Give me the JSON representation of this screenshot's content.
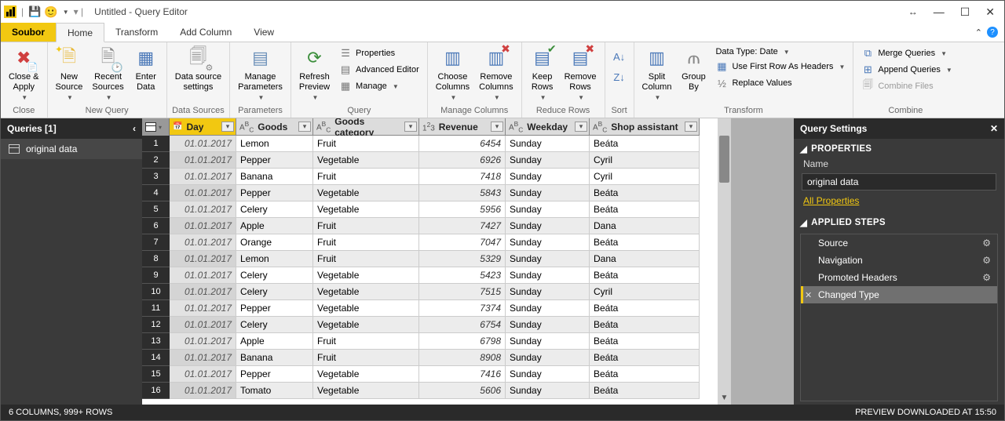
{
  "window": {
    "title": "Untitled - Query Editor"
  },
  "menu": {
    "file": "Soubor",
    "tabs": [
      "Home",
      "Transform",
      "Add Column",
      "View"
    ],
    "active": 0
  },
  "ribbon": {
    "close": {
      "close_apply": "Close &\nApply",
      "group": "Close"
    },
    "newquery": {
      "new_source": "New\nSource",
      "recent_sources": "Recent\nSources",
      "enter_data": "Enter\nData",
      "group": "New Query"
    },
    "datasources": {
      "settings": "Data source\nsettings",
      "group": "Data Sources"
    },
    "parameters": {
      "manage": "Manage\nParameters",
      "group": "Parameters"
    },
    "query": {
      "refresh": "Refresh\nPreview",
      "properties": "Properties",
      "advanced": "Advanced Editor",
      "manage": "Manage",
      "group": "Query"
    },
    "managecols": {
      "choose": "Choose\nColumns",
      "remove": "Remove\nColumns",
      "group": "Manage Columns"
    },
    "reducerows": {
      "keep": "Keep\nRows",
      "remove": "Remove\nRows",
      "group": "Reduce Rows"
    },
    "sort": {
      "group": "Sort"
    },
    "transform": {
      "split": "Split\nColumn",
      "groupby": "Group\nBy",
      "datatype": "Data Type: Date",
      "firstrow": "Use First Row As Headers",
      "replace": "Replace Values",
      "group": "Transform"
    },
    "combine": {
      "merge": "Merge Queries",
      "append": "Append Queries",
      "files": "Combine Files",
      "group": "Combine"
    }
  },
  "queries_pane": {
    "title": "Queries [1]",
    "items": [
      "original data"
    ]
  },
  "settings_pane": {
    "title": "Query Settings",
    "properties": "PROPERTIES",
    "name_label": "Name",
    "name_value": "original data",
    "all_props": "All Properties",
    "applied": "APPLIED STEPS",
    "steps": [
      {
        "label": "Source",
        "gear": true
      },
      {
        "label": "Navigation",
        "gear": true
      },
      {
        "label": "Promoted Headers",
        "gear": true
      },
      {
        "label": "Changed Type",
        "gear": false,
        "selected": true
      }
    ]
  },
  "grid": {
    "columns": [
      {
        "name": "Day",
        "type": "date",
        "selected": true
      },
      {
        "name": "Goods",
        "type": "ABC"
      },
      {
        "name": "Goods category",
        "type": "ABC"
      },
      {
        "name": "Revenue",
        "type": "123"
      },
      {
        "name": "Weekday",
        "type": "ABC"
      },
      {
        "name": "Shop assistant",
        "type": "ABC"
      }
    ],
    "rows": [
      [
        "01.01.2017",
        "Lemon",
        "Fruit",
        "6454",
        "Sunday",
        "Beáta"
      ],
      [
        "01.01.2017",
        "Pepper",
        "Vegetable",
        "6926",
        "Sunday",
        "Cyril"
      ],
      [
        "01.01.2017",
        "Banana",
        "Fruit",
        "7418",
        "Sunday",
        "Cyril"
      ],
      [
        "01.01.2017",
        "Pepper",
        "Vegetable",
        "5843",
        "Sunday",
        "Beáta"
      ],
      [
        "01.01.2017",
        "Celery",
        "Vegetable",
        "5956",
        "Sunday",
        "Beáta"
      ],
      [
        "01.01.2017",
        "Apple",
        "Fruit",
        "7427",
        "Sunday",
        "Dana"
      ],
      [
        "01.01.2017",
        "Orange",
        "Fruit",
        "7047",
        "Sunday",
        "Beáta"
      ],
      [
        "01.01.2017",
        "Lemon",
        "Fruit",
        "5329",
        "Sunday",
        "Dana"
      ],
      [
        "01.01.2017",
        "Celery",
        "Vegetable",
        "5423",
        "Sunday",
        "Beáta"
      ],
      [
        "01.01.2017",
        "Celery",
        "Vegetable",
        "7515",
        "Sunday",
        "Cyril"
      ],
      [
        "01.01.2017",
        "Pepper",
        "Vegetable",
        "7374",
        "Sunday",
        "Beáta"
      ],
      [
        "01.01.2017",
        "Celery",
        "Vegetable",
        "6754",
        "Sunday",
        "Beáta"
      ],
      [
        "01.01.2017",
        "Apple",
        "Fruit",
        "6798",
        "Sunday",
        "Beáta"
      ],
      [
        "01.01.2017",
        "Banana",
        "Fruit",
        "8908",
        "Sunday",
        "Beáta"
      ],
      [
        "01.01.2017",
        "Pepper",
        "Vegetable",
        "7416",
        "Sunday",
        "Beáta"
      ],
      [
        "01.01.2017",
        "Tomato",
        "Vegetable",
        "5606",
        "Sunday",
        "Beáta"
      ]
    ]
  },
  "status": {
    "left": "6 COLUMNS, 999+ ROWS",
    "right": "PREVIEW DOWNLOADED AT 15:50"
  }
}
